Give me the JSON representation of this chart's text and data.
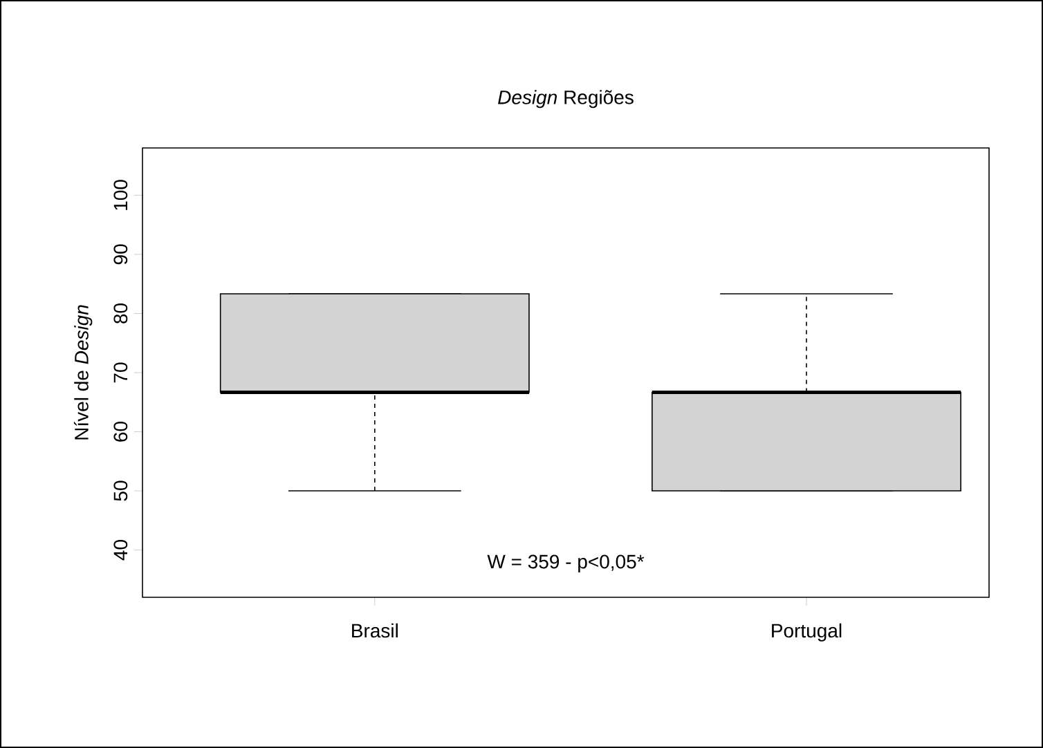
{
  "chart_data": {
    "type": "box",
    "title": "*Design* Regiões",
    "ylabel": "Nível de *Design*",
    "categories": [
      "Brasil",
      "Portugal"
    ],
    "series": [
      {
        "color": "#d3d3d3",
        "boxes": [
          {
            "low": 50,
            "q1": 66.67,
            "median": 66.67,
            "q3": 83.33,
            "high": 83.33
          },
          {
            "low": 50,
            "q1": 50,
            "median": 66.67,
            "q3": 66.67,
            "high": 83.33
          }
        ]
      }
    ],
    "ylim": [
      32,
      108
    ],
    "yticks": [
      40,
      50,
      60,
      70,
      80,
      90,
      100
    ],
    "annotations": [
      "W = 359 - p<0,05*"
    ]
  }
}
